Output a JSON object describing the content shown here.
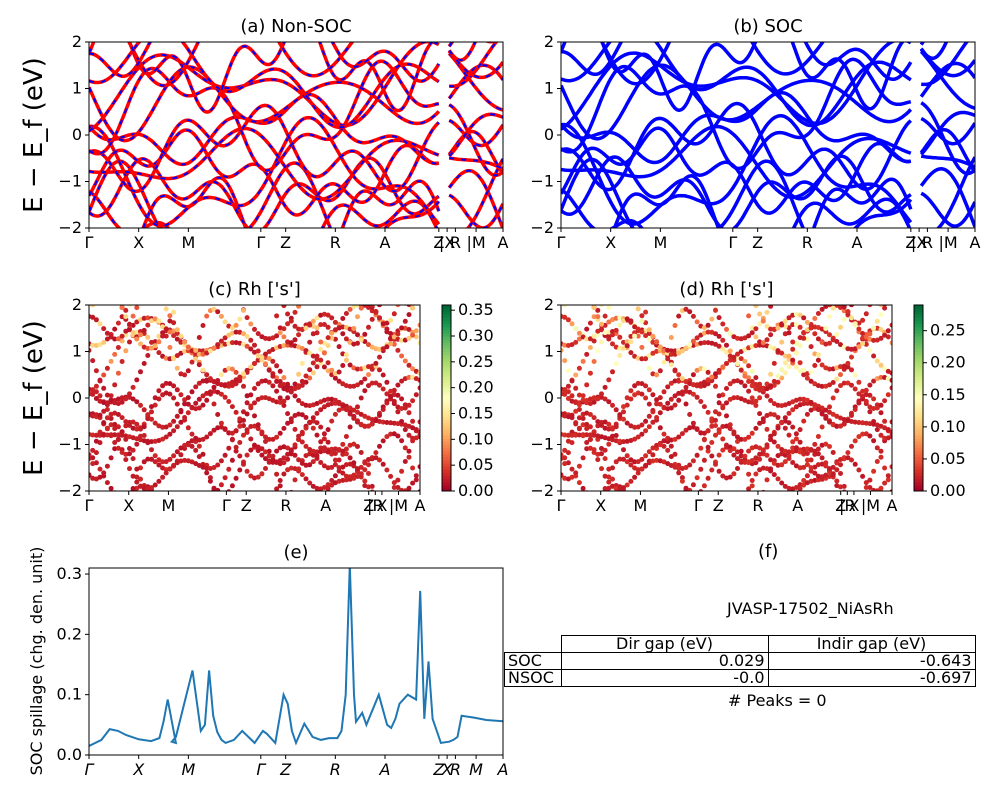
{
  "chart_data": [
    {
      "type": "line",
      "title": "(a) Non-SOC",
      "ylabel": "E − E_f (eV)",
      "ylim": [
        -2,
        2
      ],
      "yticks": [
        "−2",
        "−1",
        "0",
        "1",
        "2"
      ],
      "kpath_labels": [
        "Γ",
        "X",
        "M",
        "Γ",
        "Z",
        "R",
        "A",
        "Z",
        "|X",
        "R",
        "|M",
        "A"
      ],
      "series": [
        {
          "color": "#ff0000",
          "style": "solid"
        },
        {
          "color": "#0000ff",
          "style": "dashed"
        }
      ]
    },
    {
      "type": "line",
      "title": "(b) SOC",
      "ylim": [
        -2,
        2
      ],
      "yticks": [
        "−2",
        "−1",
        "0",
        "1",
        "2"
      ],
      "kpath_labels": [
        "Γ",
        "X",
        "M",
        "Γ",
        "Z",
        "R",
        "A",
        "Z",
        "|X",
        "R",
        "|M",
        "A"
      ],
      "series": [
        {
          "color": "#0000ff",
          "style": "solid"
        }
      ]
    },
    {
      "type": "scatter",
      "title": "(c)  Rh ['s']",
      "ylabel": "E − E_f (eV)",
      "ylim": [
        -2,
        2
      ],
      "yticks": [
        "−2",
        "−1",
        "0",
        "1",
        "2"
      ],
      "kpath_labels": [
        "Γ",
        "X",
        "M",
        "Γ",
        "Z",
        "R",
        "A",
        "Z",
        "|R",
        "X",
        "|M",
        "A"
      ],
      "colorbar": {
        "colormap": "RdYlGn",
        "range": [
          0,
          0.36
        ],
        "ticks": [
          "0.00",
          "0.05",
          "0.10",
          "0.15",
          "0.20",
          "0.25",
          "0.30",
          "0.35"
        ]
      }
    },
    {
      "type": "scatter",
      "title": "(d) Rh ['s']",
      "ylim": [
        -2,
        2
      ],
      "yticks": [
        "−2",
        "−1",
        "0",
        "1",
        "2"
      ],
      "kpath_labels": [
        "Γ",
        "X",
        "M",
        "Γ",
        "Z",
        "R",
        "A",
        "Z",
        "|R",
        "X",
        "|M",
        "A"
      ],
      "colorbar": {
        "colormap": "RdYlGn",
        "range": [
          0,
          0.29
        ],
        "ticks": [
          "0.00",
          "0.05",
          "0.10",
          "0.15",
          "0.20",
          "0.25"
        ]
      }
    },
    {
      "type": "line",
      "title": "(e)",
      "ylabel": "SOC spillage (chg. den. unit)",
      "ylim": [
        0,
        0.31
      ],
      "yticks": [
        "0.0",
        "0.1",
        "0.2",
        "0.3"
      ],
      "xlabels": [
        "Γ",
        "X",
        "M",
        "Γ",
        "Z",
        "R",
        "A",
        "Z",
        "X",
        "R",
        "M",
        "A"
      ],
      "series": [
        {
          "color": "#1f77b4",
          "x": [
            0,
            0.03,
            0.05,
            0.07,
            0.09,
            0.12,
            0.15,
            0.17,
            0.18,
            0.19,
            0.21,
            0.2,
            0.21,
            0.25,
            0.27,
            0.28,
            0.29,
            0.3,
            0.31,
            0.32,
            0.33,
            0.35,
            0.37,
            0.4,
            0.42,
            0.43,
            0.45,
            0.47,
            0.48,
            0.49,
            0.5,
            0.52,
            0.54,
            0.56,
            0.58,
            0.6,
            0.61,
            0.62,
            0.63,
            0.64,
            0.645,
            0.65,
            0.66,
            0.67,
            0.7,
            0.72,
            0.73,
            0.74,
            0.75,
            0.77,
            0.79,
            0.8,
            0.81,
            0.82,
            0.83,
            0.85,
            0.87,
            0.88,
            0.89,
            0.9,
            0.93,
            0.96,
            1.0
          ],
          "y": [
            0.015,
            0.025,
            0.043,
            0.04,
            0.033,
            0.026,
            0.023,
            0.028,
            0.055,
            0.092,
            0.02,
            0.022,
            0.03,
            0.14,
            0.04,
            0.05,
            0.14,
            0.065,
            0.038,
            0.025,
            0.02,
            0.025,
            0.04,
            0.02,
            0.04,
            0.035,
            0.02,
            0.1,
            0.085,
            0.04,
            0.02,
            0.052,
            0.03,
            0.025,
            0.028,
            0.028,
            0.04,
            0.1,
            0.315,
            0.1,
            0.055,
            0.06,
            0.07,
            0.05,
            0.1,
            0.05,
            0.045,
            0.06,
            0.085,
            0.1,
            0.092,
            0.272,
            0.06,
            0.155,
            0.06,
            0.02,
            0.022,
            0.025,
            0.03,
            0.065,
            0.062,
            0.058,
            0.056
          ]
        }
      ]
    }
  ],
  "panel_f": {
    "title": "(f)",
    "material": "JVASP-17502_NiAsRh",
    "table": {
      "headers": [
        "Dir gap (eV)",
        "Indir gap (eV)"
      ],
      "rows": [
        {
          "label": "SOC",
          "dir": "0.029",
          "indir": "-0.643"
        },
        {
          "label": "NSOC",
          "dir": "-0.0",
          "indir": "-0.697"
        }
      ]
    },
    "peaks": "# Peaks = 0"
  }
}
